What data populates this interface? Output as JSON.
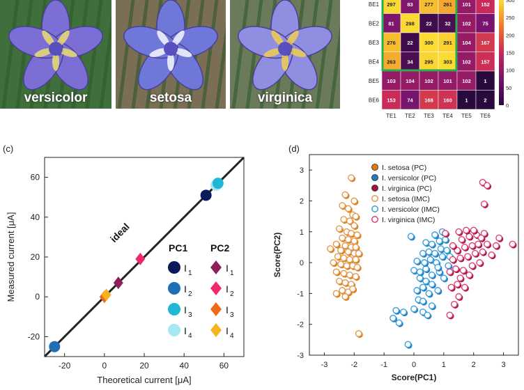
{
  "photos": [
    {
      "label": "versicolor",
      "bg": "#3f6f3a",
      "petal": "#7b6fd6",
      "accent": "#f2e46a"
    },
    {
      "label": "setosa",
      "bg": "#7a6e55",
      "petal": "#6f78d8",
      "accent": "#ffffff"
    },
    {
      "label": "virginica",
      "bg": "#6b7a5a",
      "petal": "#8f8ee0",
      "accent": "#f5d24a"
    }
  ],
  "chart_data": [
    {
      "type": "heatmap",
      "rows": [
        "BE1",
        "BE2",
        "BE3",
        "BE4",
        "BE5",
        "BE6"
      ],
      "cols": [
        "TE1",
        "TE2",
        "TE3",
        "TE4",
        "TE5",
        "TE6"
      ],
      "values": [
        [
          297,
          83,
          277,
          261,
          101,
          152
        ],
        [
          81,
          298,
          22,
          32,
          102,
          75
        ],
        [
          276,
          22,
          300,
          291,
          104,
          167
        ],
        [
          263,
          34,
          295,
          303,
          102,
          157
        ],
        [
          103,
          104,
          102,
          101,
          102,
          1
        ],
        [
          153,
          74,
          168,
          160,
          1,
          2
        ]
      ],
      "colorbar_ticks": [
        0,
        50,
        100,
        150,
        200,
        250,
        300
      ],
      "highlight_color": "#22b14c"
    },
    {
      "type": "scatter",
      "panel_label": "(c)",
      "xlabel": "Theoretical current [μA]",
      "ylabel": "Measured current [μA]",
      "xlim": [
        -30,
        70
      ],
      "ylim": [
        -30,
        70
      ],
      "xticks": [
        -20,
        0,
        20,
        40,
        60
      ],
      "yticks": [
        -20,
        0,
        20,
        40,
        60
      ],
      "ideal_label": "ideal",
      "legend_headers": [
        "PC1",
        "PC2"
      ],
      "legend_labels": [
        "I",
        "1",
        "I",
        "2",
        "I",
        "3",
        "I",
        "4"
      ],
      "series": [
        {
          "group": "PC1",
          "marker": "circle",
          "points": [
            {
              "x": -25,
              "y": -25,
              "color": "#1f6fb5"
            },
            {
              "x": 51,
              "y": 51,
              "color": "#0b1a5a"
            },
            {
              "x": 56,
              "y": 56,
              "color": "#a8e6f2"
            },
            {
              "x": 57,
              "y": 57,
              "color": "#1fb6d8"
            }
          ]
        },
        {
          "group": "PC2",
          "marker": "diamond",
          "points": [
            {
              "x": 7,
              "y": 7,
              "color": "#8e1f5a"
            },
            {
              "x": 18,
              "y": 19,
              "color": "#f02a68"
            },
            {
              "x": 0,
              "y": 0,
              "color": "#f06a1a"
            },
            {
              "x": 1,
              "y": 1,
              "color": "#f5b320"
            }
          ]
        }
      ],
      "legend_colors": {
        "PC1": [
          "#0b1a5a",
          "#1f6fb5",
          "#1fb6d8",
          "#a8e6f2"
        ],
        "PC2": [
          "#8e1f5a",
          "#f02a68",
          "#f06a1a",
          "#f5b320"
        ]
      }
    },
    {
      "type": "scatter",
      "panel_label": "(d)",
      "xlabel": "Score(PC1)",
      "ylabel": "Score(PC2)",
      "xlim": [
        -3.5,
        3.5
      ],
      "ylim": [
        -3,
        3.5
      ],
      "xticks": [
        -3,
        -2,
        -1,
        0,
        1,
        2,
        3
      ],
      "yticks": [
        -3,
        -2,
        -1,
        0,
        1,
        2,
        3
      ],
      "legend": [
        {
          "name": "I. setosa (PC)",
          "color": "#e07a10",
          "filled": true
        },
        {
          "name": "I. versicolor (PC)",
          "color": "#1f7ac0",
          "filled": true
        },
        {
          "name": "I. virginica (PC)",
          "color": "#a0143c",
          "filled": true
        },
        {
          "name": "I. setosa (IMC)",
          "color": "#e09a50",
          "filled": false
        },
        {
          "name": "I. versicolor (IMC)",
          "color": "#3aa0e0",
          "filled": false
        },
        {
          "name": "I. virginica (IMC)",
          "color": "#e0407a",
          "filled": false
        }
      ],
      "setosa": [
        [
          -2.1,
          2.75
        ],
        [
          -2.3,
          2.2
        ],
        [
          -2.0,
          2.0
        ],
        [
          -2.4,
          1.85
        ],
        [
          -2.2,
          1.75
        ],
        [
          -2.05,
          1.55
        ],
        [
          -1.95,
          1.5
        ],
        [
          -2.35,
          1.4
        ],
        [
          -2.15,
          1.35
        ],
        [
          -2.0,
          1.2
        ],
        [
          -2.5,
          1.1
        ],
        [
          -2.25,
          1.0
        ],
        [
          -2.1,
          0.95
        ],
        [
          -1.9,
          0.9
        ],
        [
          -2.4,
          0.8
        ],
        [
          -2.2,
          0.75
        ],
        [
          -2.0,
          0.7
        ],
        [
          -2.6,
          0.6
        ],
        [
          -2.3,
          0.55
        ],
        [
          -2.1,
          0.5
        ],
        [
          -1.95,
          0.5
        ],
        [
          -2.8,
          0.45
        ],
        [
          -2.45,
          0.4
        ],
        [
          -2.2,
          0.35
        ],
        [
          -2.0,
          0.3
        ],
        [
          -1.85,
          0.3
        ],
        [
          -2.55,
          0.2
        ],
        [
          -2.35,
          0.15
        ],
        [
          -2.15,
          0.1
        ],
        [
          -1.95,
          0.1
        ],
        [
          -2.7,
          0.0
        ],
        [
          -2.45,
          -0.05
        ],
        [
          -2.25,
          -0.1
        ],
        [
          -2.05,
          -0.1
        ],
        [
          -1.9,
          -0.15
        ],
        [
          -2.6,
          -0.3
        ],
        [
          -2.35,
          -0.35
        ],
        [
          -2.15,
          -0.4
        ],
        [
          -1.95,
          -0.45
        ],
        [
          -2.5,
          -0.6
        ],
        [
          -2.3,
          -0.65
        ],
        [
          -2.1,
          -0.7
        ],
        [
          -2.4,
          -0.9
        ],
        [
          -2.2,
          -0.95
        ],
        [
          -2.6,
          -1.0
        ],
        [
          -2.3,
          -1.1
        ],
        [
          -2.05,
          -0.85
        ],
        [
          -1.85,
          -2.3
        ]
      ],
      "versicolor": [
        [
          -0.7,
          -1.8
        ],
        [
          -0.6,
          -1.55
        ],
        [
          -0.5,
          -1.95
        ],
        [
          -0.35,
          -1.6
        ],
        [
          -0.2,
          -2.65
        ],
        [
          0.0,
          -1.5
        ],
        [
          0.15,
          -1.2
        ],
        [
          0.3,
          -1.6
        ],
        [
          0.45,
          -1.7
        ],
        [
          0.6,
          -1.4
        ],
        [
          0.1,
          -0.9
        ],
        [
          0.3,
          -0.8
        ],
        [
          0.5,
          -1.0
        ],
        [
          0.2,
          -0.5
        ],
        [
          0.4,
          -0.6
        ],
        [
          0.6,
          -0.7
        ],
        [
          0.8,
          -0.9
        ],
        [
          0.0,
          -0.25
        ],
        [
          0.2,
          -0.3
        ],
        [
          0.4,
          -0.2
        ],
        [
          0.6,
          -0.4
        ],
        [
          0.85,
          -0.3
        ],
        [
          1.0,
          -0.5
        ],
        [
          0.1,
          0.05
        ],
        [
          0.35,
          0.0
        ],
        [
          0.55,
          0.1
        ],
        [
          0.75,
          0.0
        ],
        [
          0.95,
          0.2
        ],
        [
          1.15,
          -0.1
        ],
        [
          0.3,
          0.3
        ],
        [
          0.5,
          0.35
        ],
        [
          0.7,
          0.3
        ],
        [
          0.9,
          0.45
        ],
        [
          1.1,
          0.4
        ],
        [
          0.4,
          0.65
        ],
        [
          0.6,
          0.6
        ],
        [
          0.85,
          0.7
        ],
        [
          1.05,
          0.75
        ],
        [
          0.7,
          0.9
        ],
        [
          0.95,
          1.0
        ],
        [
          -0.1,
          0.85
        ],
        [
          0.3,
          -1.25
        ],
        [
          0.8,
          -0.15
        ],
        [
          1.2,
          0.2
        ]
      ],
      "virginica": [
        [
          1.2,
          -1.7
        ],
        [
          1.35,
          -1.35
        ],
        [
          1.5,
          -1.1
        ],
        [
          1.7,
          -0.8
        ],
        [
          1.55,
          -0.5
        ],
        [
          1.85,
          -0.4
        ],
        [
          1.25,
          -0.8
        ],
        [
          1.45,
          -0.7
        ],
        [
          1.2,
          -0.3
        ],
        [
          1.4,
          -0.2
        ],
        [
          1.65,
          -0.25
        ],
        [
          1.95,
          -0.1
        ],
        [
          2.2,
          0.0
        ],
        [
          1.3,
          0.1
        ],
        [
          1.55,
          0.15
        ],
        [
          1.8,
          0.2
        ],
        [
          2.05,
          0.3
        ],
        [
          2.3,
          0.35
        ],
        [
          2.6,
          0.25
        ],
        [
          1.45,
          0.4
        ],
        [
          1.7,
          0.5
        ],
        [
          1.95,
          0.55
        ],
        [
          2.15,
          0.6
        ],
        [
          2.45,
          0.6
        ],
        [
          2.75,
          0.55
        ],
        [
          1.6,
          0.75
        ],
        [
          1.85,
          0.85
        ],
        [
          2.1,
          0.9
        ],
        [
          2.35,
          0.95
        ],
        [
          1.5,
          1.0
        ],
        [
          1.75,
          1.05
        ],
        [
          2.0,
          1.05
        ],
        [
          2.25,
          0.8
        ],
        [
          2.85,
          0.8
        ],
        [
          2.35,
          1.9
        ],
        [
          2.3,
          2.6
        ],
        [
          2.45,
          2.5
        ],
        [
          3.3,
          0.6
        ],
        [
          1.3,
          0.55
        ],
        [
          1.05,
          0.95
        ]
      ]
    }
  ]
}
